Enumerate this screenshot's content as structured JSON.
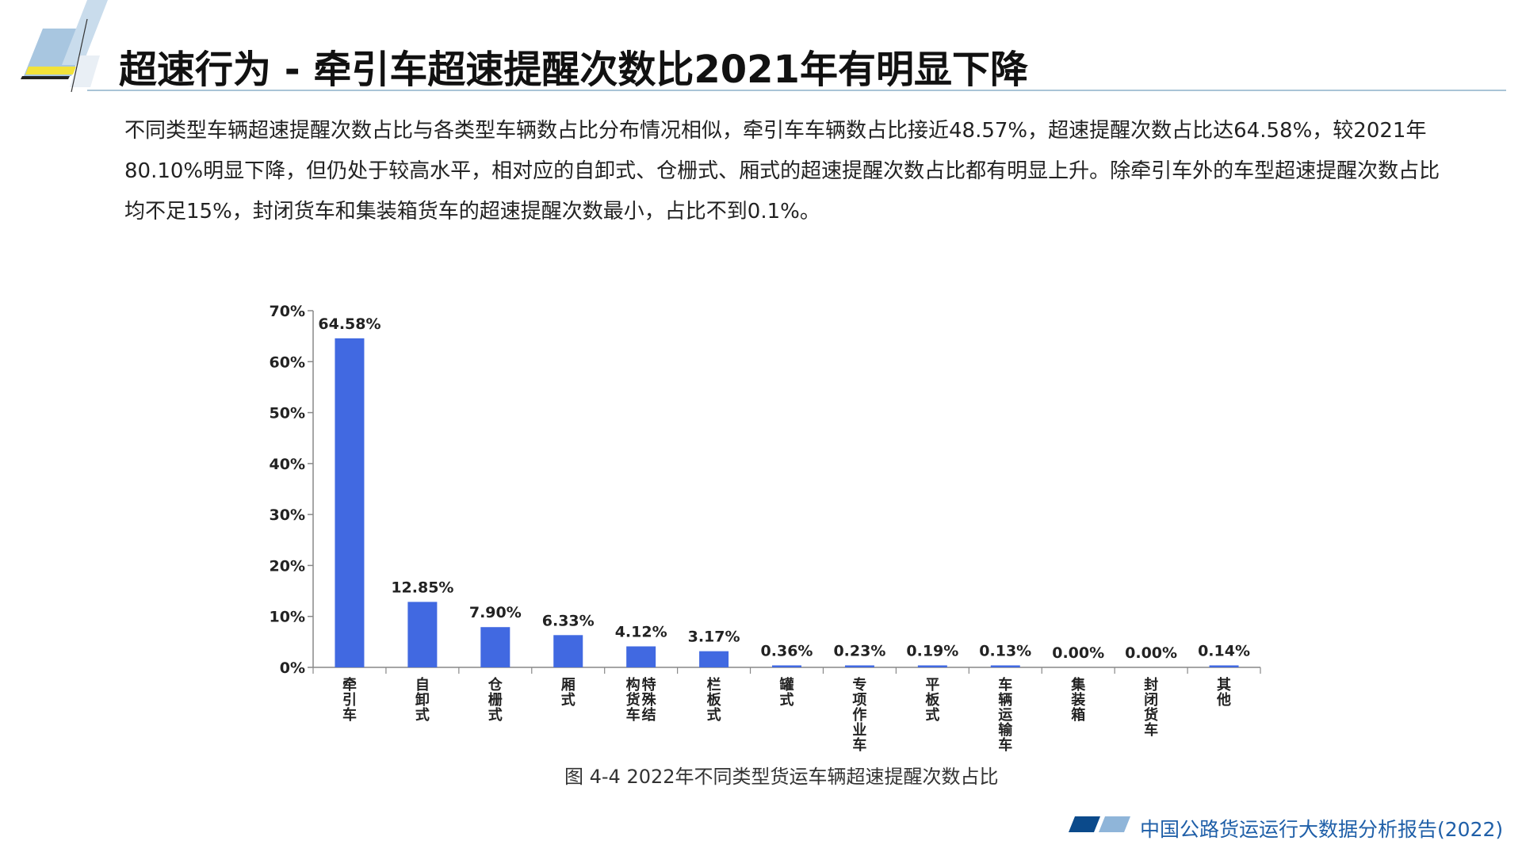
{
  "header": {
    "title": "超速行为 - 牵引车超速提醒次数比2021年有明显下降"
  },
  "intro": {
    "text": "不同类型车辆超速提醒次数占比与各类型车辆数占比分布情况相似，牵引车车辆数占比接近48.57%，超速提醒次数占比达64.58%，较2021年80.10%明显下降，但仍处于较高水平，相对应的自卸式、仓栅式、厢式的超速提醒次数占比都有明显上升。除牵引车外的车型超速提醒次数占比均不足15%，封闭货车和集装箱货车的超速提醒次数最小，占比不到0.1%。"
  },
  "chart_data": {
    "type": "bar",
    "title": "",
    "xlabel": "",
    "ylabel": "",
    "ylim": [
      0,
      70
    ],
    "yticks": [
      "0%",
      "10%",
      "20%",
      "30%",
      "40%",
      "50%",
      "60%",
      "70%"
    ],
    "categories": [
      "牵引车",
      "自卸式",
      "仓栅式",
      "厢式",
      "特殊结构货车",
      "栏板式",
      "罐式",
      "专项作业车",
      "平板式",
      "车辆运输车",
      "集装箱",
      "封闭货车",
      "其他"
    ],
    "values": [
      64.58,
      12.85,
      7.9,
      6.33,
      4.12,
      3.17,
      0.36,
      0.23,
      0.19,
      0.13,
      0.0,
      0.0,
      0.14
    ],
    "data_labels": [
      "64.58%",
      "12.85%",
      "7.90%",
      "6.33%",
      "4.12%",
      "3.17%",
      "0.36%",
      "0.23%",
      "0.19%",
      "0.13%",
      "0.00%",
      "0.00%",
      "0.14%"
    ],
    "bar_color": "#4169e1",
    "grid": false,
    "legend": "none"
  },
  "caption": {
    "text": "图 4-4 2022年不同类型货运车辆超速提醒次数占比"
  },
  "footer": {
    "text": "中国公路货运运行大数据分析报告(2022)",
    "accent_dark": "#0b4a8b",
    "accent_light": "#8fb5d9"
  }
}
